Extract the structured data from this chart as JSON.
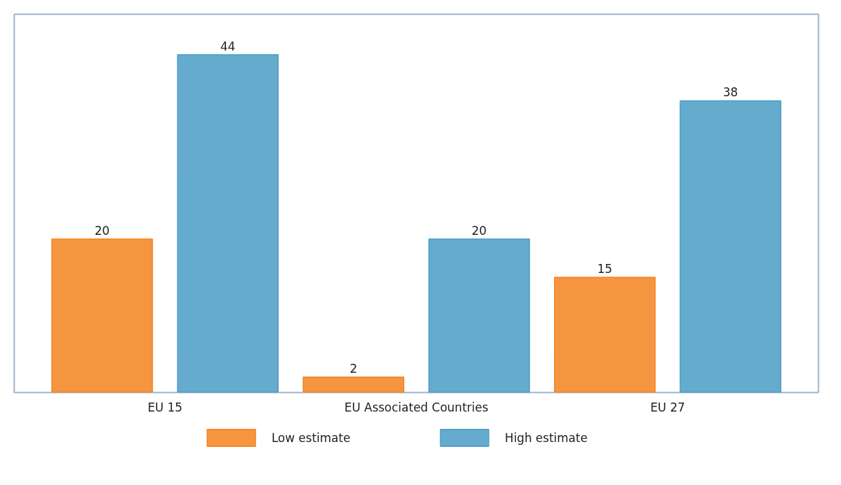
{
  "chart_data": {
    "type": "bar",
    "categories": [
      "EU 15",
      "EU Associated Countries",
      "EU 27"
    ],
    "series": [
      {
        "name": "Low estimate",
        "color": "#f5821f",
        "values": [
          20,
          2,
          15
        ]
      },
      {
        "name": "High estimate",
        "color": "#4a9cc4",
        "values": [
          44,
          20,
          38
        ]
      }
    ],
    "data_labels": true,
    "legend": "bottom",
    "grid": false
  }
}
